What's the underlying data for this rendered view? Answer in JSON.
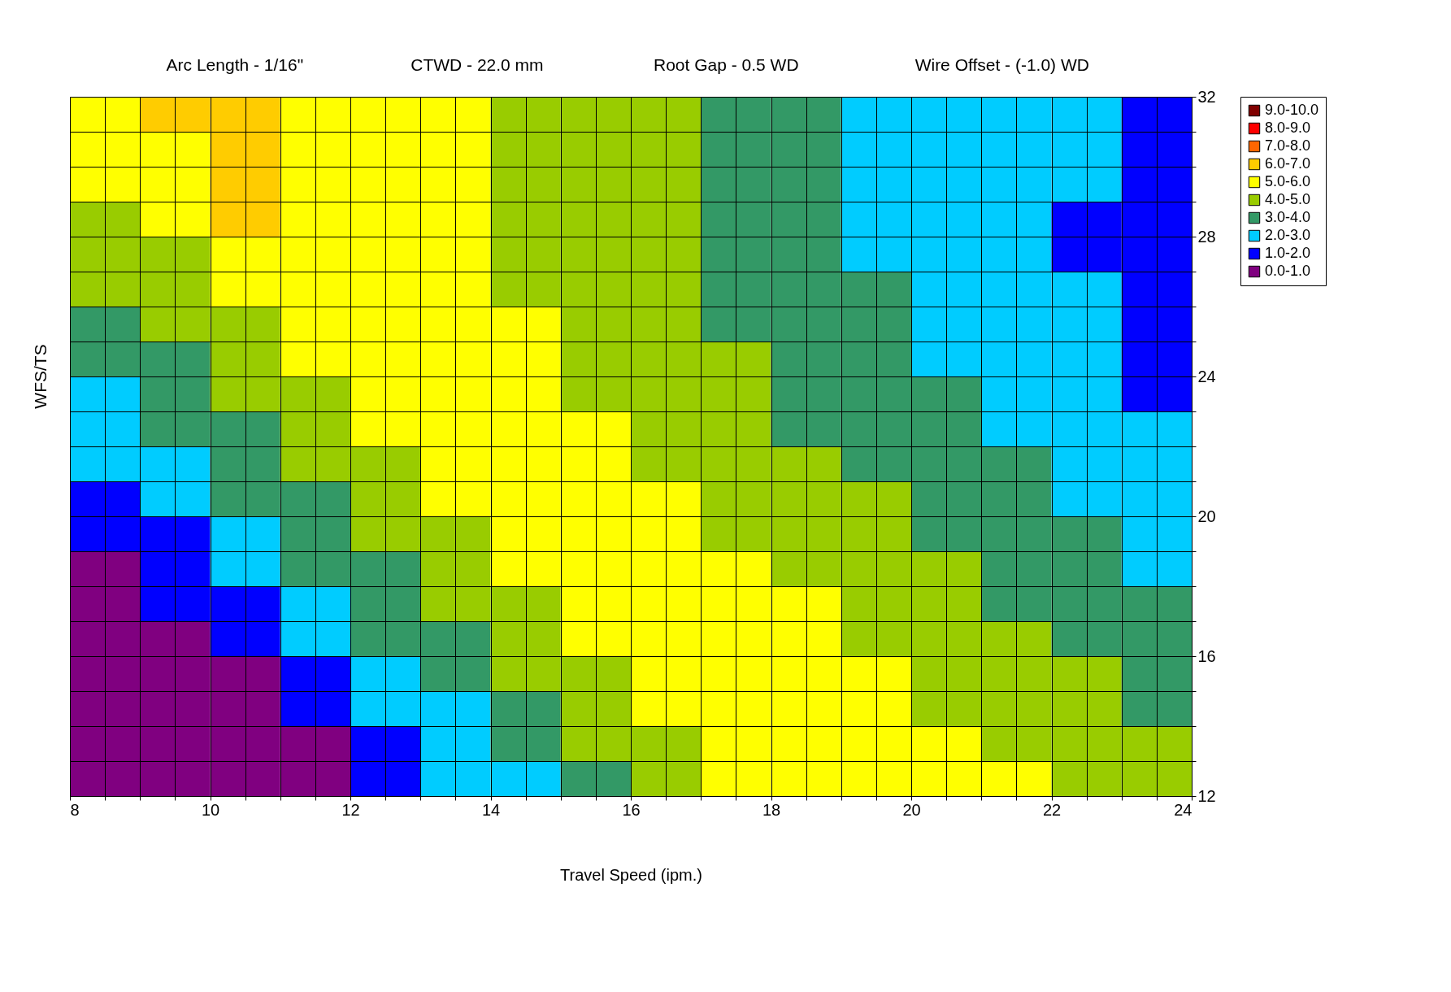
{
  "chart_data": {
    "type": "heatmap",
    "annotations": [
      "Arc Length - 1/16\"",
      "CTWD - 22.0 mm",
      "Root Gap - 0.5 WD",
      "Wire Offset - (-1.0) WD"
    ],
    "xlabel": "Travel Speed (ipm.)",
    "ylabel": "WFS/TS",
    "x": [
      8.5,
      9.5,
      10.5,
      11.5,
      12.5,
      13.5,
      14.5,
      15.5,
      16.5,
      17.5,
      18.5,
      19.5,
      20.5,
      21.5,
      22.5,
      23.5
    ],
    "cells": [
      [
        5.5,
        6.5,
        6.5,
        5.5,
        5.5,
        5.5,
        4.5,
        4.5,
        4.5,
        3.5,
        3.5,
        2.5,
        2.5,
        2.5,
        2.5,
        1.5
      ],
      [
        5.5,
        5.5,
        6.5,
        5.5,
        5.5,
        5.5,
        4.5,
        4.5,
        4.5,
        3.5,
        3.5,
        2.5,
        2.5,
        2.5,
        2.5,
        1.5
      ],
      [
        5.5,
        5.5,
        6.5,
        5.5,
        5.5,
        5.5,
        4.5,
        4.5,
        4.5,
        3.5,
        3.5,
        2.5,
        2.5,
        2.5,
        2.5,
        1.5
      ],
      [
        4.5,
        5.5,
        6.5,
        5.5,
        5.5,
        5.5,
        4.5,
        4.5,
        4.5,
        3.5,
        3.5,
        2.5,
        2.5,
        2.5,
        1.5,
        1.5
      ],
      [
        4.5,
        4.5,
        5.5,
        5.5,
        5.5,
        5.5,
        4.5,
        4.5,
        4.5,
        3.5,
        3.5,
        2.5,
        2.5,
        2.5,
        1.5,
        1.5
      ],
      [
        4.5,
        4.5,
        5.5,
        5.5,
        5.5,
        5.5,
        4.5,
        4.5,
        4.5,
        3.5,
        3.5,
        3.5,
        2.5,
        2.5,
        2.5,
        1.5
      ],
      [
        3.5,
        4.5,
        4.5,
        5.5,
        5.5,
        5.5,
        5.5,
        4.5,
        4.5,
        3.5,
        3.5,
        3.5,
        2.5,
        2.5,
        2.5,
        1.5
      ],
      [
        3.5,
        3.5,
        4.5,
        5.5,
        5.5,
        5.5,
        5.5,
        4.5,
        4.5,
        4.5,
        3.5,
        3.5,
        2.5,
        2.5,
        2.5,
        1.5
      ],
      [
        2.5,
        3.5,
        4.5,
        4.5,
        5.5,
        5.5,
        5.5,
        4.5,
        4.5,
        4.5,
        3.5,
        3.5,
        3.5,
        2.5,
        2.5,
        1.5
      ],
      [
        2.5,
        3.5,
        3.5,
        4.5,
        5.5,
        5.5,
        5.5,
        5.5,
        4.5,
        4.5,
        3.5,
        3.5,
        3.5,
        2.5,
        2.5,
        2.5
      ],
      [
        2.5,
        2.5,
        3.5,
        4.5,
        4.5,
        5.5,
        5.5,
        5.5,
        4.5,
        4.5,
        4.5,
        3.5,
        3.5,
        3.5,
        2.5,
        2.5
      ],
      [
        1.5,
        2.5,
        3.5,
        3.5,
        4.5,
        5.5,
        5.5,
        5.5,
        5.5,
        4.5,
        4.5,
        4.5,
        3.5,
        3.5,
        2.5,
        2.5
      ],
      [
        1.5,
        1.5,
        2.5,
        3.5,
        4.5,
        4.5,
        5.5,
        5.5,
        5.5,
        4.5,
        4.5,
        4.5,
        3.5,
        3.5,
        3.5,
        2.5
      ],
      [
        0.5,
        1.5,
        2.5,
        3.5,
        3.5,
        4.5,
        5.5,
        5.5,
        5.5,
        5.5,
        4.5,
        4.5,
        4.5,
        3.5,
        3.5,
        2.5
      ],
      [
        0.5,
        1.5,
        1.5,
        2.5,
        3.5,
        4.5,
        4.5,
        5.5,
        5.5,
        5.5,
        5.5,
        4.5,
        4.5,
        3.5,
        3.5,
        3.5
      ],
      [
        0.5,
        0.5,
        1.5,
        2.5,
        3.5,
        3.5,
        4.5,
        5.5,
        5.5,
        5.5,
        5.5,
        4.5,
        4.5,
        4.5,
        3.5,
        3.5
      ],
      [
        0.5,
        0.5,
        0.5,
        1.5,
        2.5,
        3.5,
        4.5,
        4.5,
        5.5,
        5.5,
        5.5,
        5.5,
        4.5,
        4.5,
        4.5,
        3.5
      ],
      [
        0.5,
        0.5,
        0.5,
        1.5,
        2.5,
        2.5,
        3.5,
        4.5,
        5.5,
        5.5,
        5.5,
        5.5,
        4.5,
        4.5,
        4.5,
        3.5
      ],
      [
        0.5,
        0.5,
        0.5,
        0.5,
        1.5,
        2.5,
        3.5,
        4.5,
        4.5,
        5.5,
        5.5,
        5.5,
        5.5,
        4.5,
        4.5,
        4.5
      ],
      [
        0.5,
        0.5,
        0.5,
        0.5,
        1.5,
        2.5,
        2.5,
        3.5,
        4.5,
        5.5,
        5.5,
        5.5,
        5.5,
        5.5,
        4.5,
        4.5
      ]
    ],
    "cticks": [
      {
        "value": 9.5,
        "label": "9.0-10.0"
      },
      {
        "value": 8.5,
        "label": "8.0-9.0"
      },
      {
        "value": 7.5,
        "label": "7.0-8.0"
      },
      {
        "value": 6.5,
        "label": "6.0-7.0"
      },
      {
        "value": 5.5,
        "label": "5.0-6.0"
      },
      {
        "value": 4.5,
        "label": "4.0-5.0"
      },
      {
        "value": 3.5,
        "label": "3.0-4.0"
      },
      {
        "value": 2.5,
        "label": "2.0-3.0"
      },
      {
        "value": 1.5,
        "label": "1.0-2.0"
      },
      {
        "value": 0.5,
        "label": "0.0-1.0"
      }
    ],
    "colors": [
      "#800000",
      "#ff0000",
      "#ff6600",
      "#ffcc00",
      "#ffff00",
      "#99cc00",
      "#339966",
      "#00ccff",
      "#0000ff",
      "#800080"
    ],
    "xlim": [
      8,
      24
    ],
    "ylim": [
      12,
      32
    ],
    "xticks": [
      8,
      {
        "value": 8.5,
        "label": null
      },
      {
        "value": 9,
        "label": null
      },
      {
        "value": 9.5,
        "label": null
      },
      10,
      {
        "value": 10.5,
        "label": null
      },
      {
        "value": 11,
        "label": null
      },
      {
        "value": 11.5,
        "label": null
      },
      12,
      {
        "value": 12.5,
        "label": null
      },
      {
        "value": 13,
        "label": null
      },
      {
        "value": 13.5,
        "label": null
      },
      14,
      {
        "value": 14.5,
        "label": null
      },
      {
        "value": 15,
        "label": null
      },
      {
        "value": 15.5,
        "label": null
      },
      16,
      {
        "value": 16.5,
        "label": null
      },
      {
        "value": 17,
        "label": null
      },
      {
        "value": 17.5,
        "label": null
      },
      18,
      {
        "value": 18.5,
        "label": null
      },
      {
        "value": 19,
        "label": null
      },
      {
        "value": 19.5,
        "label": null
      },
      20,
      {
        "value": 20.5,
        "label": null
      },
      {
        "value": 21,
        "label": null
      },
      {
        "value": 21.5,
        "label": null
      },
      22,
      {
        "value": 22.5,
        "label": null
      },
      {
        "value": 23,
        "label": null
      },
      {
        "value": 23.5,
        "label": null
      },
      24
    ],
    "yticks": [
      12,
      {
        "value": 13,
        "label": null
      },
      {
        "value": 14,
        "label": null
      },
      {
        "value": 15,
        "label": null
      },
      16,
      {
        "value": 17,
        "label": null
      },
      {
        "value": 18,
        "label": null
      },
      {
        "value": 19,
        "label": null
      },
      20,
      {
        "value": 21,
        "label": null
      },
      {
        "value": 22,
        "label": null
      },
      {
        "value": 23,
        "label": null
      },
      24,
      {
        "value": 25,
        "label": null
      },
      {
        "value": 26,
        "label": null
      },
      {
        "value": 27,
        "label": null
      },
      28,
      {
        "value": 29,
        "label": null
      },
      {
        "value": 30,
        "label": null
      },
      {
        "value": 31,
        "label": null
      },
      32
    ],
    "grid": true
  }
}
